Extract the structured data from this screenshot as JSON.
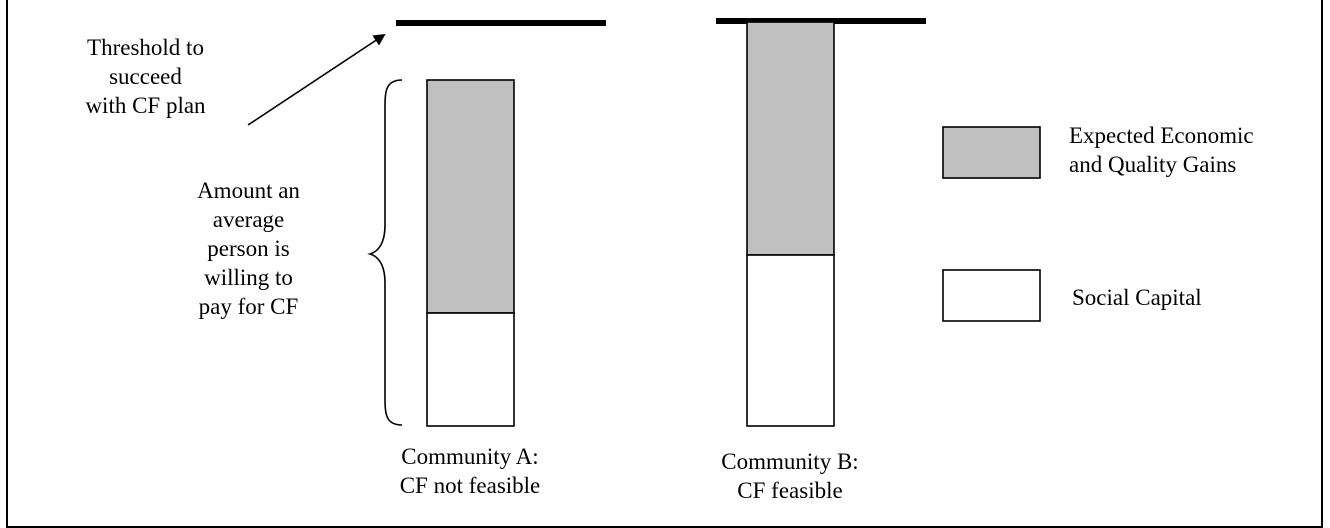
{
  "threshold_label": "Threshold to\nsucceed\nwith CF plan",
  "willingness_label": "Amount an\naverage\nperson is\nwilling to\npay for CF",
  "communities": [
    {
      "label": "Community A:\nCF not feasible",
      "feasible": false
    },
    {
      "label": "Community B:\nCF feasible",
      "feasible": true
    }
  ],
  "legend": [
    {
      "label": "Expected Economic\nand Quality Gains",
      "color": "#c0c0c0"
    },
    {
      "label": "Social Capital",
      "color": "#ffffff"
    }
  ]
}
